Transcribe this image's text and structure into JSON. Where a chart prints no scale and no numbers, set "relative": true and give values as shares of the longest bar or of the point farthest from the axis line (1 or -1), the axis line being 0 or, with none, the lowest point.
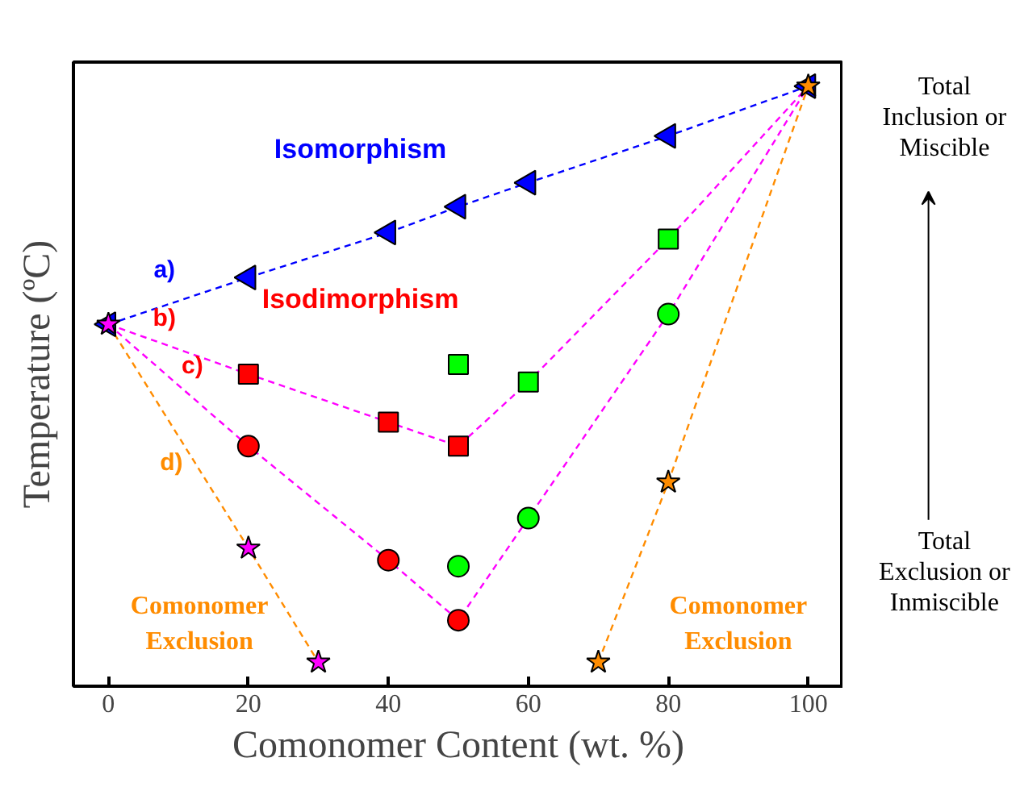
{
  "chart_data": {
    "type": "scatter",
    "relative": true,
    "xlabel": "Comonomer Content (wt. %)",
    "ylabel": "Temperature (ºC)",
    "xlim": [
      -5,
      105
    ],
    "xticks": [
      0,
      20,
      40,
      60,
      80,
      100
    ],
    "grid": false,
    "series": [
      {
        "type": "line",
        "color": "#ff00ff",
        "line_style": "dashed",
        "marker": "none",
        "x": [
          0,
          20,
          40,
          50,
          60,
          80,
          100
        ],
        "values": [
          0.603,
          0.52,
          0.44,
          0.4,
          0.507,
          0.745,
          1
        ]
      },
      {
        "type": "line",
        "color": "#ff00ff",
        "line_style": "dashed",
        "marker": "none",
        "x": [
          0,
          20,
          40,
          50,
          60,
          80,
          100
        ],
        "values": [
          0.603,
          0.4,
          0.21,
          0.11,
          0.28,
          0.62,
          1
        ]
      },
      {
        "type": "line",
        "color": "#ff8c00",
        "line_style": "dashed",
        "marker": "none",
        "x": [
          0,
          20,
          30
        ],
        "values": [
          0.603,
          0.23,
          0.04
        ]
      },
      {
        "type": "line",
        "color": "#ff8c00",
        "line_style": "dashed",
        "marker": "none",
        "x": [
          70,
          80,
          100
        ],
        "values": [
          0.04,
          0.34,
          1
        ]
      },
      {
        "type": "line",
        "color": "#0000ff",
        "line_style": "dashed",
        "marker": "triangle",
        "x": [
          0,
          20,
          40,
          50,
          60,
          80,
          100
        ],
        "values": [
          0.603,
          0.681,
          0.756,
          0.799,
          0.839,
          0.917,
          1
        ]
      },
      {
        "color": "#ff0000",
        "marker": "square",
        "x": [
          20,
          40,
          50
        ],
        "values": [
          0.52,
          0.44,
          0.4
        ]
      },
      {
        "color": "#00ff00",
        "marker": "square",
        "x": [
          50,
          60,
          80
        ],
        "values": [
          0.536,
          0.507,
          0.745
        ]
      },
      {
        "color": "#ff0000",
        "marker": "circle",
        "x": [
          20,
          40,
          50
        ],
        "values": [
          0.4,
          0.21,
          0.11
        ]
      },
      {
        "color": "#00ff00",
        "marker": "circle",
        "x": [
          50,
          60,
          80
        ],
        "values": [
          0.2,
          0.28,
          0.62
        ]
      },
      {
        "marker": "star",
        "colors": [
          "#ff00ff",
          "#ff00ff",
          "#ff00ff",
          "#ff8c00",
          "#ff8c00",
          "#ff8c00"
        ],
        "x": [
          0,
          20,
          30,
          70,
          80,
          100
        ],
        "values": [
          0.603,
          0.23,
          0.04,
          0.04,
          0.34,
          1
        ]
      }
    ],
    "annotations": [
      "Isomorphism",
      "Isodimorphism",
      "a)",
      "b)",
      "c)",
      "d)",
      "Comonomer Exclusion",
      "Comonomer Exclusion",
      "Total Inclusion or Miscible",
      "Total Exclusion or Inmiscible"
    ]
  }
}
